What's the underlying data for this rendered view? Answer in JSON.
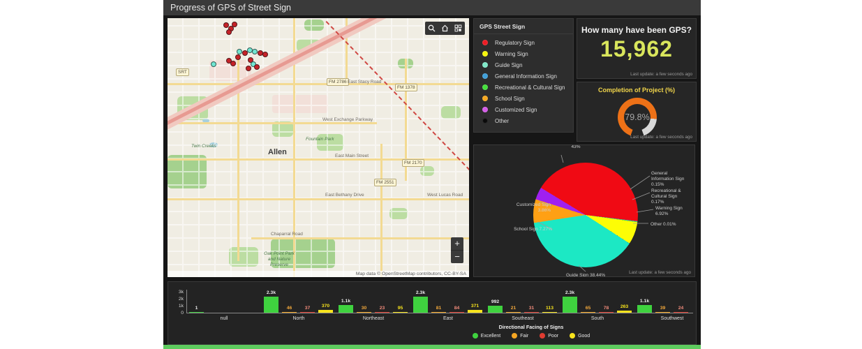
{
  "header": {
    "title": "Progress of GPS of Street Sign"
  },
  "map": {
    "attribution": "Map data © OpenStreetMap contributors, CC-BY-SA",
    "zoom_in": "+",
    "zoom_out": "−",
    "toolbar": [
      {
        "icon": "search-icon"
      },
      {
        "icon": "home-icon"
      },
      {
        "icon": "basemap-grid-icon"
      }
    ],
    "labels": [
      {
        "text": "SRT",
        "type": "shield"
      },
      {
        "text": "FM 2786",
        "type": "shield"
      },
      {
        "text": "East Stacy Road",
        "type": "road"
      },
      {
        "text": "FM 1378",
        "type": "shield"
      },
      {
        "text": "West Exchange Parkway",
        "type": "road"
      },
      {
        "text": "Fountain Park",
        "type": "park-label"
      },
      {
        "text": "Allen",
        "type": "city"
      },
      {
        "text": "East Main Street",
        "type": "road"
      },
      {
        "text": "FM 2170",
        "type": "shield"
      },
      {
        "text": "FM 2551",
        "type": "shield"
      },
      {
        "text": "East Bethany Drive",
        "type": "road"
      },
      {
        "text": "West Lucas Road",
        "type": "road"
      },
      {
        "text": "Twin Creeks",
        "type": "park-label"
      },
      {
        "text": "Chaparral Road",
        "type": "road"
      },
      {
        "text": "Oak Point Park and Nature Preserve",
        "type": "park-multiline"
      }
    ],
    "points": [
      {
        "x": 80,
        "y": 6,
        "color": "#c62228"
      },
      {
        "x": 87,
        "y": 11,
        "color": "#c62228"
      },
      {
        "x": 92,
        "y": 5,
        "color": "#c62228"
      },
      {
        "x": 84,
        "y": 16,
        "color": "#c62228"
      },
      {
        "x": 99,
        "y": 44,
        "color": "#72e6d2"
      },
      {
        "x": 107,
        "y": 46,
        "color": "#c62228"
      },
      {
        "x": 114,
        "y": 42,
        "color": "#72e6d2"
      },
      {
        "x": 121,
        "y": 44,
        "color": "#72e6d2"
      },
      {
        "x": 129,
        "y": 46,
        "color": "#c62228"
      },
      {
        "x": 136,
        "y": 48,
        "color": "#c62228"
      },
      {
        "x": 97,
        "y": 52,
        "color": "#c62228"
      },
      {
        "x": 62,
        "y": 62,
        "color": "#72e6d2"
      },
      {
        "x": 84,
        "y": 57,
        "color": "#c62228"
      },
      {
        "x": 90,
        "y": 61,
        "color": "#c62228"
      },
      {
        "x": 115,
        "y": 56,
        "color": "#c62228"
      },
      {
        "x": 119,
        "y": 62,
        "color": "#72e6d2"
      },
      {
        "x": 124,
        "y": 66,
        "color": "#c62228"
      },
      {
        "x": 112,
        "y": 68,
        "color": "#c62228"
      }
    ]
  },
  "legend_panel": {
    "title": "GPS Street Sign",
    "items": [
      {
        "label": "Regulatory Sign",
        "color": "#ed1c24"
      },
      {
        "label": "Warning Sign",
        "color": "#f5f50a"
      },
      {
        "label": "Guide Sign",
        "color": "#7fe8c8"
      },
      {
        "label": "General Information Sign",
        "color": "#3f9fd8"
      },
      {
        "label": "Recreational & Cultural Sign",
        "color": "#45e03c"
      },
      {
        "label": "School Sign",
        "color": "#f5a81f"
      },
      {
        "label": "Customized Sign",
        "color": "#d45ce8"
      },
      {
        "label": "Other",
        "color": "#0a0a0a"
      }
    ]
  },
  "indicator": {
    "title": "How many have been GPS?",
    "value": "15,962",
    "last_update": "Last update: a few seconds ago"
  },
  "gauge": {
    "title": "Completion of Project (%)",
    "value": "79.8%",
    "pct": 79.8,
    "arc_color": "#ed7117",
    "rest_color": "#d8d8d8",
    "last_update": "Last update: a few seconds ago"
  },
  "chart_data": [
    {
      "type": "pie",
      "name": "sign-type-distribution",
      "slices": [
        {
          "label": "Regulatory Sign",
          "pct": 43.0,
          "pct_display": "43%",
          "color": "#f00a14"
        },
        {
          "label": "General Information Sign",
          "pct": 0.15,
          "pct_display": "0.15%",
          "color": "#3f9fd8"
        },
        {
          "label": "Recreational & Cultural Sign",
          "pct": 0.17,
          "pct_display": "0.17%",
          "color": "#45e03c"
        },
        {
          "label": "Warning Sign",
          "pct": 6.92,
          "pct_display": "6.92%",
          "color": "#fdfd05"
        },
        {
          "label": "Other",
          "pct": 0.01,
          "pct_display": "0.01%",
          "color": "#0a0a0a"
        },
        {
          "label": "Guide Sign",
          "pct": 38.44,
          "pct_display": "38.44%",
          "color": "#1ce8c4"
        },
        {
          "label": "School Sign",
          "pct": 7.27,
          "pct_display": "7.27%",
          "color": "#ffa014"
        },
        {
          "label": "Customized Sign",
          "pct": 3.86,
          "pct_display": "3.86%",
          "color": "#a020f0"
        }
      ],
      "last_update": "Last update: a few seconds ago"
    },
    {
      "type": "bar",
      "name": "directional-facing-of-signs",
      "categories": [
        "null",
        "North",
        "Northeast",
        "East",
        "Southeast",
        "South",
        "Southwest"
      ],
      "series": [
        {
          "name": "Excellent",
          "color": "#3fd23f",
          "label_color": "#ececec",
          "values": [
            1,
            2300,
            1100,
            2300,
            992,
            2300,
            1100
          ],
          "labels": [
            "1",
            "2.3k",
            "1.1k",
            "2.3k",
            "992",
            "2.3k",
            "1.1k"
          ]
        },
        {
          "name": "Fair",
          "color": "#f5a623",
          "label_color": "#f2a83b",
          "values": [
            null,
            46,
            30,
            81,
            21,
            65,
            39
          ],
          "labels": [
            "",
            "46",
            "30",
            "81",
            "21",
            "65",
            "39"
          ]
        },
        {
          "name": "Poor",
          "color": "#e03c31",
          "label_color": "#f08a7a",
          "values": [
            null,
            37,
            23,
            84,
            31,
            78,
            24
          ],
          "labels": [
            "",
            "37",
            "23",
            "84",
            "31",
            "78",
            "24"
          ]
        },
        {
          "name": "Good",
          "color": "#f7e31c",
          "label_color": "#f7e31c",
          "values": [
            null,
            370,
            95,
            371,
            113,
            263,
            null
          ],
          "labels": [
            "",
            "370",
            "95",
            "371",
            "113",
            "263",
            ""
          ]
        }
      ],
      "ylim": [
        0,
        3000
      ],
      "ytick_labels": [
        "3k",
        "2k",
        "1k",
        "0"
      ],
      "ytick_values": [
        3000,
        2000,
        1000,
        0
      ],
      "xlabel": "Directional Facing of Signs",
      "legend": [
        "Excellent",
        "Fair",
        "Poor",
        "Good"
      ],
      "legend_colors": [
        "#3fd23f",
        "#f5a623",
        "#e03c31",
        "#f7e31c"
      ]
    }
  ]
}
